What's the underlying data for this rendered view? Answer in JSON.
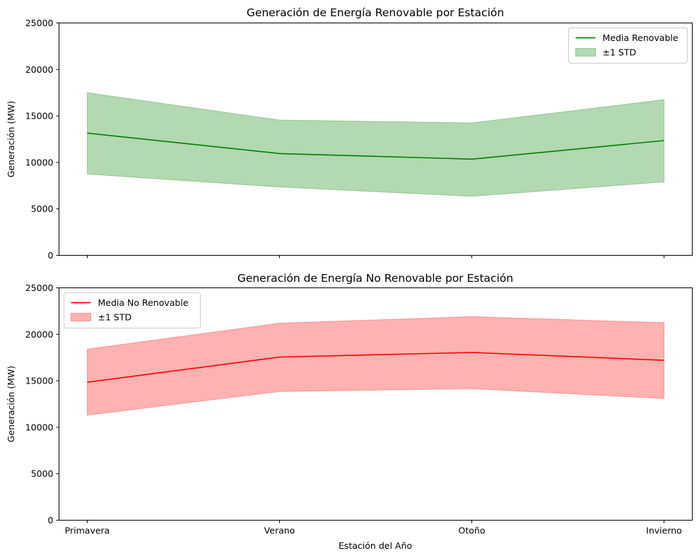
{
  "chart_data": [
    {
      "type": "area",
      "title": "Generación de Energía Renovable por Estación",
      "xlabel": "",
      "ylabel": "Generación (MW)",
      "categories": [
        "Primavera",
        "Verano",
        "Otoño",
        "Invierno"
      ],
      "show_x_tick_labels": false,
      "ylim": [
        0,
        25000
      ],
      "yticks": [
        0,
        5000,
        10000,
        15000,
        20000,
        25000
      ],
      "grid": false,
      "legend_position": "upper right",
      "series": [
        {
          "name": "Media Renovable",
          "values": [
            13150,
            10950,
            10350,
            12350
          ],
          "color": "#008000"
        }
      ],
      "band": {
        "name": "±1 STD",
        "lower": [
          8750,
          7350,
          6350,
          7900
        ],
        "upper": [
          17500,
          14550,
          14250,
          16750
        ],
        "color": "#008000",
        "alpha": 0.3
      }
    },
    {
      "type": "area",
      "title": "Generación de Energía No Renovable por Estación",
      "xlabel": "Estación del Año",
      "ylabel": "Generación (MW)",
      "categories": [
        "Primavera",
        "Verano",
        "Otoño",
        "Invierno"
      ],
      "show_x_tick_labels": true,
      "ylim": [
        0,
        25000
      ],
      "yticks": [
        0,
        5000,
        10000,
        15000,
        20000,
        25000
      ],
      "grid": false,
      "legend_position": "upper left",
      "series": [
        {
          "name": "Media No Renovable",
          "values": [
            14850,
            17550,
            18050,
            17200
          ],
          "color": "#ff0000"
        }
      ],
      "band": {
        "name": "±1 STD",
        "lower": [
          11300,
          13850,
          14150,
          13100
        ],
        "upper": [
          18400,
          21200,
          21900,
          21250
        ],
        "color": "#ff0000",
        "alpha": 0.3
      }
    }
  ]
}
